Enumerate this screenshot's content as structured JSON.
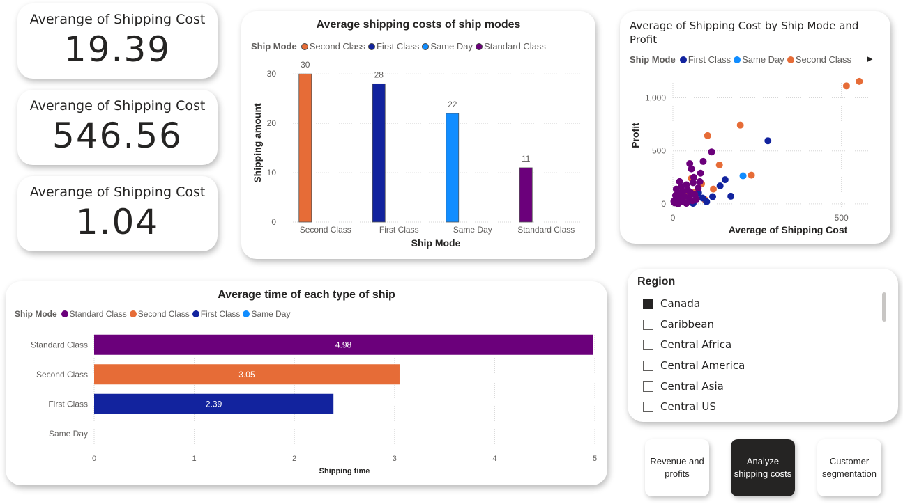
{
  "kpis": [
    {
      "title": "Averange of Shipping Cost",
      "value": "19.39"
    },
    {
      "title": "Averange of Shipping Cost",
      "value": "546.56"
    },
    {
      "title": "Averange of Shipping Cost",
      "value": "1.04"
    }
  ],
  "legend_label": "Ship Mode",
  "colors": {
    "Second Class": "#E66C37",
    "First Class": "#12239E",
    "Same Day": "#118DFF",
    "Standard Class": "#6B007B"
  },
  "chart_data": [
    {
      "type": "bar",
      "title": "Average shipping costs of ship modes",
      "legend": [
        "Second Class",
        "First Class",
        "Same Day",
        "Standard Class"
      ],
      "categories": [
        "Second Class",
        "First Class",
        "Same Day",
        "Standard Class"
      ],
      "values": [
        30,
        28,
        22,
        11
      ],
      "data_labels": [
        "30",
        "28",
        "22",
        "11"
      ],
      "xlabel": "Ship Mode",
      "ylabel": "Shipping amount",
      "ylim": [
        0,
        32
      ],
      "yticks": [
        "0",
        "10",
        "20",
        "30"
      ],
      "grid": true
    },
    {
      "type": "scatter",
      "title": "Average of Shipping Cost by Ship Mode and Profit",
      "legend": [
        "First Class",
        "Same Day",
        "Second Class"
      ],
      "xlabel": "Average of Shipping Cost",
      "ylabel": "Profit",
      "xlim": [
        0,
        600
      ],
      "ylim": [
        -40,
        1200
      ],
      "xticks": [
        "0",
        "500"
      ],
      "yticks": [
        "0",
        "500",
        "1,000"
      ],
      "grid": true,
      "series": [
        {
          "name": "Second Class",
          "points": [
            [
              515,
              1112
            ],
            [
              553,
              1155
            ],
            [
              200,
              743
            ],
            [
              103,
              643
            ],
            [
              138,
              367
            ],
            [
              233,
              271
            ],
            [
              85,
              190
            ],
            [
              55,
              240
            ],
            [
              120,
              140
            ],
            [
              65,
              110
            ],
            [
              35,
              90
            ],
            [
              45,
              60
            ],
            [
              95,
              40
            ],
            [
              25,
              30
            ],
            [
              10,
              15
            ]
          ]
        },
        {
          "name": "First Class",
          "points": [
            [
              282,
              595
            ],
            [
              155,
              228
            ],
            [
              140,
              170
            ],
            [
              172,
              72
            ],
            [
              118,
              68
            ],
            [
              88,
              55
            ],
            [
              76,
              105
            ],
            [
              50,
              40
            ],
            [
              30,
              20
            ],
            [
              15,
              10
            ],
            [
              100,
              20
            ],
            [
              60,
              5
            ]
          ]
        },
        {
          "name": "Same Day",
          "points": [
            [
              208,
              265
            ]
          ]
        },
        {
          "name": "Standard Class",
          "points": [
            [
              115,
              490
            ],
            [
              90,
              400
            ],
            [
              50,
              380
            ],
            [
              82,
              290
            ],
            [
              55,
              330
            ],
            [
              20,
              210
            ],
            [
              60,
              200
            ],
            [
              40,
              180
            ],
            [
              25,
              160
            ],
            [
              75,
              150
            ],
            [
              10,
              140
            ],
            [
              30,
              120
            ],
            [
              52,
              110
            ],
            [
              18,
              100
            ],
            [
              65,
              90
            ],
            [
              8,
              80
            ],
            [
              35,
              70
            ],
            [
              48,
              60
            ],
            [
              22,
              50
            ],
            [
              12,
              40
            ],
            [
              58,
              30
            ],
            [
              28,
              20
            ],
            [
              5,
              10
            ],
            [
              40,
              5
            ],
            [
              15,
              0
            ],
            [
              70,
              45
            ],
            [
              3,
              25
            ],
            [
              44,
              130
            ],
            [
              80,
              210
            ],
            [
              62,
              250
            ]
          ]
        }
      ]
    },
    {
      "type": "bar",
      "orientation": "horizontal",
      "title": "Average time of each type of ship",
      "legend": [
        "Standard Class",
        "Second Class",
        "First Class",
        "Same Day"
      ],
      "categories": [
        "Standard Class",
        "Second Class",
        "First Class",
        "Same Day"
      ],
      "values": [
        4.98,
        3.05,
        2.39,
        0
      ],
      "data_labels": [
        "4.98",
        "3.05",
        "2.39",
        ""
      ],
      "xlabel": "Shipping time",
      "ylabel": "",
      "xlim": [
        0,
        5
      ],
      "xticks": [
        "0",
        "1",
        "2",
        "3",
        "4",
        "5"
      ],
      "grid": true
    }
  ],
  "slicer": {
    "title": "Region",
    "items": [
      {
        "label": "Canada",
        "checked": true
      },
      {
        "label": "Caribbean",
        "checked": false
      },
      {
        "label": "Central Africa",
        "checked": false
      },
      {
        "label": "Central America",
        "checked": false
      },
      {
        "label": "Central Asia",
        "checked": false
      },
      {
        "label": "Central US",
        "checked": false
      }
    ]
  },
  "nav": [
    {
      "line1": "Revenue and",
      "line2": "profits",
      "active": false
    },
    {
      "line1": "Analyze",
      "line2": "shipping costs",
      "active": true
    },
    {
      "line1": "Customer",
      "line2": "segmentation",
      "active": false
    }
  ]
}
